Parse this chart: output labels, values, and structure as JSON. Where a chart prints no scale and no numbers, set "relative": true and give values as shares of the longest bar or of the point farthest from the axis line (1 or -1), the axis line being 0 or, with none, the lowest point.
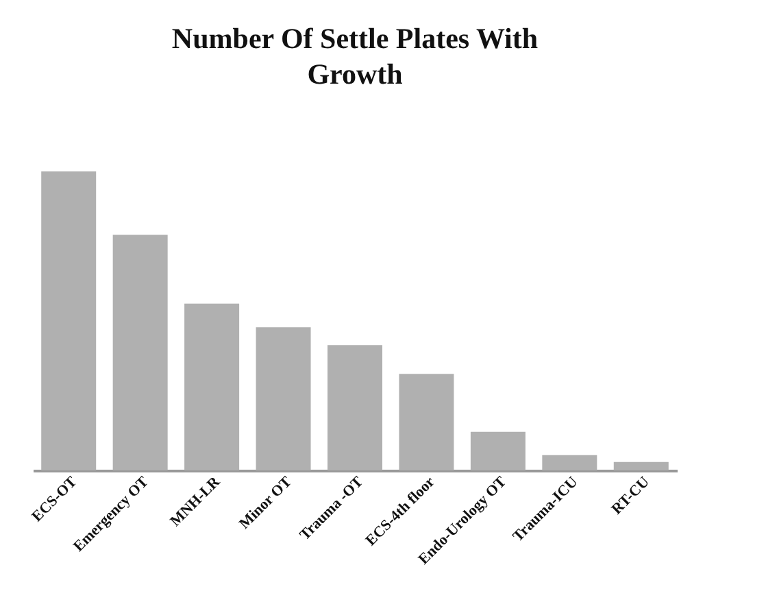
{
  "chart_data": {
    "type": "bar",
    "title": "Number Of Settle Plates With Growth",
    "categories": [
      "ECS-OT",
      "Emergency OT",
      "MNH-LR",
      "Minor OT",
      "Trauma -OT",
      "ECS-4th floor",
      "Endo-Urology OT",
      "Trauma-ICU",
      "RT-CU"
    ],
    "values": [
      1,
      0.788,
      0.558,
      0.479,
      0.419,
      0.323,
      0.129,
      0.051,
      0.028
    ],
    "color": "#b0b0b0",
    "relative": true
  }
}
